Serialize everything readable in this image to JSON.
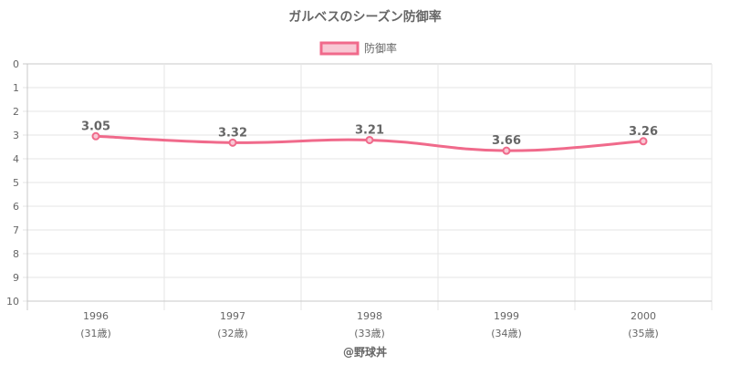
{
  "chart_data": {
    "type": "line",
    "title": "ガルベスのシーズン防御率",
    "categories": [
      "1996",
      "1997",
      "1998",
      "1999",
      "2000"
    ],
    "sub_categories": [
      "(31歳)",
      "(32歳)",
      "(33歳)",
      "(34歳)",
      "(35歳)"
    ],
    "series": [
      {
        "name": "防御率",
        "values": [
          3.05,
          3.32,
          3.21,
          3.66,
          3.26
        ],
        "labels": [
          "3.05",
          "3.32",
          "3.21",
          "3.66",
          "3.26"
        ],
        "color": "#f06a8b",
        "fill": "#f8c8d4"
      }
    ],
    "ylim": [
      0,
      10
    ],
    "y_ticks": [
      "0",
      "1",
      "2",
      "3",
      "4",
      "5",
      "6",
      "7",
      "8",
      "9",
      "10"
    ],
    "y_reversed": true,
    "grid": true,
    "legend": "top",
    "credit": "@野球丼"
  }
}
